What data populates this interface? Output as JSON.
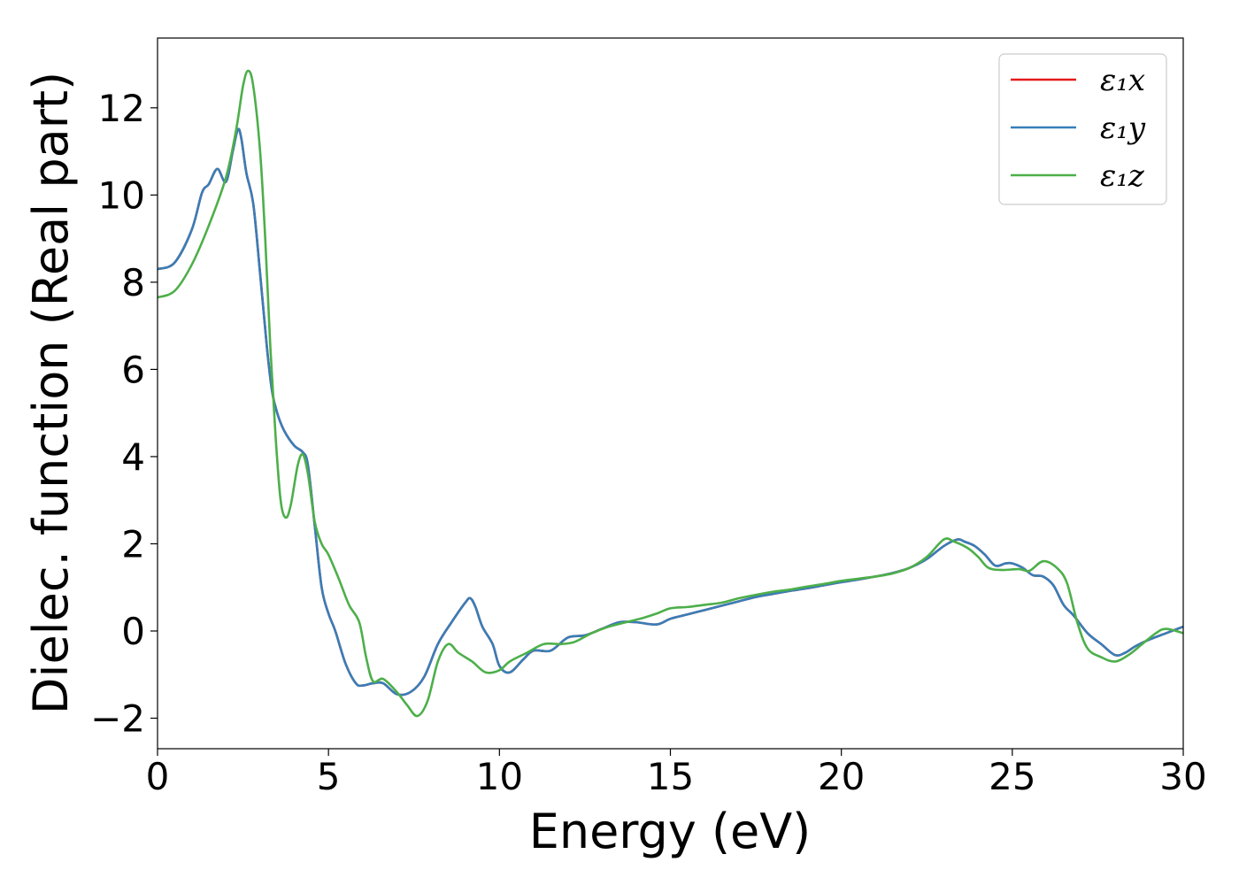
{
  "chart_data": {
    "type": "line",
    "title": "",
    "xlabel": "Energy (eV)",
    "ylabel": "Dielec. function (Real part)",
    "xlim": [
      0,
      30
    ],
    "ylim": [
      -2.7,
      13.6
    ],
    "xticks": [
      0,
      5,
      10,
      15,
      20,
      25,
      30
    ],
    "yticks": [
      -2,
      0,
      2,
      4,
      6,
      8,
      10,
      12
    ],
    "xtick_labels": [
      "0",
      "5",
      "10",
      "15",
      "20",
      "25",
      "30"
    ],
    "ytick_labels": [
      "−2",
      "0",
      "2",
      "4",
      "6",
      "8",
      "10",
      "12"
    ],
    "grid": false,
    "legend_position": "top-right",
    "series": [
      {
        "name": "ε₁x",
        "color": "#e41a1c",
        "points": [
          [
            0,
            8.3
          ],
          [
            0.5,
            8.45
          ],
          [
            1.0,
            9.2
          ],
          [
            1.3,
            10.05
          ],
          [
            1.5,
            10.25
          ],
          [
            1.75,
            10.6
          ],
          [
            2.0,
            10.3
          ],
          [
            2.2,
            11.0
          ],
          [
            2.35,
            11.5
          ],
          [
            2.45,
            11.3
          ],
          [
            2.6,
            10.5
          ],
          [
            2.8,
            9.8
          ],
          [
            3.0,
            8.2
          ],
          [
            3.2,
            6.5
          ],
          [
            3.35,
            5.5
          ],
          [
            3.5,
            5.0
          ],
          [
            3.7,
            4.6
          ],
          [
            4.0,
            4.25
          ],
          [
            4.25,
            4.1
          ],
          [
            4.4,
            3.8
          ],
          [
            4.6,
            2.4
          ],
          [
            4.8,
            1.0
          ],
          [
            5.0,
            0.4
          ],
          [
            5.2,
            0.0
          ],
          [
            5.5,
            -0.75
          ],
          [
            5.8,
            -1.2
          ],
          [
            6.0,
            -1.25
          ],
          [
            6.3,
            -1.2
          ],
          [
            6.6,
            -1.2
          ],
          [
            7.0,
            -1.45
          ],
          [
            7.4,
            -1.4
          ],
          [
            7.8,
            -1.05
          ],
          [
            8.2,
            -0.3
          ],
          [
            8.6,
            0.2
          ],
          [
            9.0,
            0.65
          ],
          [
            9.15,
            0.75
          ],
          [
            9.3,
            0.55
          ],
          [
            9.5,
            0.1
          ],
          [
            9.8,
            -0.3
          ],
          [
            10.0,
            -0.8
          ],
          [
            10.3,
            -0.95
          ],
          [
            10.7,
            -0.65
          ],
          [
            11.0,
            -0.45
          ],
          [
            11.5,
            -0.45
          ],
          [
            12.0,
            -0.15
          ],
          [
            12.5,
            -0.1
          ],
          [
            13.0,
            0.05
          ],
          [
            13.5,
            0.2
          ],
          [
            14.0,
            0.2
          ],
          [
            14.6,
            0.15
          ],
          [
            15.0,
            0.28
          ],
          [
            15.5,
            0.38
          ],
          [
            16.0,
            0.48
          ],
          [
            16.5,
            0.58
          ],
          [
            17.0,
            0.68
          ],
          [
            17.5,
            0.78
          ],
          [
            18.0,
            0.85
          ],
          [
            18.5,
            0.92
          ],
          [
            19.0,
            0.98
          ],
          [
            19.5,
            1.05
          ],
          [
            20.0,
            1.12
          ],
          [
            20.5,
            1.18
          ],
          [
            21.0,
            1.25
          ],
          [
            21.5,
            1.33
          ],
          [
            22.0,
            1.45
          ],
          [
            22.5,
            1.65
          ],
          [
            23.0,
            1.95
          ],
          [
            23.4,
            2.1
          ],
          [
            23.6,
            2.05
          ],
          [
            23.9,
            1.95
          ],
          [
            24.2,
            1.75
          ],
          [
            24.5,
            1.5
          ],
          [
            24.8,
            1.55
          ],
          [
            25.0,
            1.55
          ],
          [
            25.3,
            1.45
          ],
          [
            25.6,
            1.28
          ],
          [
            25.9,
            1.25
          ],
          [
            26.2,
            1.05
          ],
          [
            26.5,
            0.6
          ],
          [
            26.8,
            0.35
          ],
          [
            27.2,
            -0.05
          ],
          [
            27.6,
            -0.3
          ],
          [
            28.0,
            -0.55
          ],
          [
            28.3,
            -0.5
          ],
          [
            28.6,
            -0.35
          ],
          [
            29.0,
            -0.2
          ],
          [
            29.5,
            -0.05
          ],
          [
            30.0,
            0.1
          ]
        ]
      },
      {
        "name": "ε₁y",
        "color": "#377eb8",
        "points": [
          [
            0,
            8.3
          ],
          [
            0.5,
            8.45
          ],
          [
            1.0,
            9.2
          ],
          [
            1.3,
            10.05
          ],
          [
            1.5,
            10.25
          ],
          [
            1.75,
            10.6
          ],
          [
            2.0,
            10.3
          ],
          [
            2.2,
            11.0
          ],
          [
            2.35,
            11.5
          ],
          [
            2.45,
            11.3
          ],
          [
            2.6,
            10.5
          ],
          [
            2.8,
            9.8
          ],
          [
            3.0,
            8.2
          ],
          [
            3.2,
            6.5
          ],
          [
            3.35,
            5.5
          ],
          [
            3.5,
            5.0
          ],
          [
            3.7,
            4.6
          ],
          [
            4.0,
            4.25
          ],
          [
            4.25,
            4.1
          ],
          [
            4.4,
            3.8
          ],
          [
            4.6,
            2.4
          ],
          [
            4.8,
            1.0
          ],
          [
            5.0,
            0.4
          ],
          [
            5.2,
            0.0
          ],
          [
            5.5,
            -0.75
          ],
          [
            5.8,
            -1.2
          ],
          [
            6.0,
            -1.25
          ],
          [
            6.3,
            -1.2
          ],
          [
            6.6,
            -1.2
          ],
          [
            7.0,
            -1.45
          ],
          [
            7.4,
            -1.4
          ],
          [
            7.8,
            -1.05
          ],
          [
            8.2,
            -0.3
          ],
          [
            8.6,
            0.2
          ],
          [
            9.0,
            0.65
          ],
          [
            9.15,
            0.75
          ],
          [
            9.3,
            0.55
          ],
          [
            9.5,
            0.1
          ],
          [
            9.8,
            -0.3
          ],
          [
            10.0,
            -0.8
          ],
          [
            10.3,
            -0.95
          ],
          [
            10.7,
            -0.65
          ],
          [
            11.0,
            -0.45
          ],
          [
            11.5,
            -0.45
          ],
          [
            12.0,
            -0.15
          ],
          [
            12.5,
            -0.1
          ],
          [
            13.0,
            0.05
          ],
          [
            13.5,
            0.2
          ],
          [
            14.0,
            0.2
          ],
          [
            14.6,
            0.15
          ],
          [
            15.0,
            0.28
          ],
          [
            15.5,
            0.38
          ],
          [
            16.0,
            0.48
          ],
          [
            16.5,
            0.58
          ],
          [
            17.0,
            0.68
          ],
          [
            17.5,
            0.78
          ],
          [
            18.0,
            0.85
          ],
          [
            18.5,
            0.92
          ],
          [
            19.0,
            0.98
          ],
          [
            19.5,
            1.05
          ],
          [
            20.0,
            1.12
          ],
          [
            20.5,
            1.18
          ],
          [
            21.0,
            1.25
          ],
          [
            21.5,
            1.33
          ],
          [
            22.0,
            1.45
          ],
          [
            22.5,
            1.65
          ],
          [
            23.0,
            1.95
          ],
          [
            23.4,
            2.1
          ],
          [
            23.6,
            2.05
          ],
          [
            23.9,
            1.95
          ],
          [
            24.2,
            1.75
          ],
          [
            24.5,
            1.5
          ],
          [
            24.8,
            1.55
          ],
          [
            25.0,
            1.55
          ],
          [
            25.3,
            1.45
          ],
          [
            25.6,
            1.28
          ],
          [
            25.9,
            1.25
          ],
          [
            26.2,
            1.05
          ],
          [
            26.5,
            0.6
          ],
          [
            26.8,
            0.35
          ],
          [
            27.2,
            -0.05
          ],
          [
            27.6,
            -0.3
          ],
          [
            28.0,
            -0.55
          ],
          [
            28.3,
            -0.5
          ],
          [
            28.6,
            -0.35
          ],
          [
            29.0,
            -0.2
          ],
          [
            29.5,
            -0.05
          ],
          [
            30.0,
            0.1
          ]
        ]
      },
      {
        "name": "ε₁z",
        "color": "#4daf4a",
        "points": [
          [
            0,
            7.65
          ],
          [
            0.5,
            7.8
          ],
          [
            1.0,
            8.4
          ],
          [
            1.5,
            9.3
          ],
          [
            2.0,
            10.4
          ],
          [
            2.3,
            11.5
          ],
          [
            2.5,
            12.5
          ],
          [
            2.65,
            12.85
          ],
          [
            2.8,
            12.5
          ],
          [
            3.0,
            11.0
          ],
          [
            3.15,
            9.0
          ],
          [
            3.3,
            6.5
          ],
          [
            3.45,
            4.5
          ],
          [
            3.6,
            3.0
          ],
          [
            3.75,
            2.6
          ],
          [
            3.9,
            2.9
          ],
          [
            4.1,
            3.8
          ],
          [
            4.25,
            4.05
          ],
          [
            4.4,
            3.6
          ],
          [
            4.6,
            2.5
          ],
          [
            4.8,
            2.0
          ],
          [
            5.0,
            1.75
          ],
          [
            5.3,
            1.2
          ],
          [
            5.6,
            0.6
          ],
          [
            5.9,
            0.2
          ],
          [
            6.1,
            -0.6
          ],
          [
            6.3,
            -1.15
          ],
          [
            6.6,
            -1.1
          ],
          [
            7.0,
            -1.4
          ],
          [
            7.3,
            -1.7
          ],
          [
            7.6,
            -1.95
          ],
          [
            7.9,
            -1.6
          ],
          [
            8.2,
            -0.7
          ],
          [
            8.5,
            -0.3
          ],
          [
            8.8,
            -0.5
          ],
          [
            9.2,
            -0.7
          ],
          [
            9.6,
            -0.95
          ],
          [
            10.0,
            -0.9
          ],
          [
            10.3,
            -0.7
          ],
          [
            10.8,
            -0.5
          ],
          [
            11.3,
            -0.3
          ],
          [
            11.8,
            -0.3
          ],
          [
            12.2,
            -0.25
          ],
          [
            12.7,
            -0.05
          ],
          [
            13.2,
            0.1
          ],
          [
            13.7,
            0.2
          ],
          [
            14.2,
            0.3
          ],
          [
            14.6,
            0.4
          ],
          [
            15.0,
            0.52
          ],
          [
            15.5,
            0.55
          ],
          [
            16.0,
            0.6
          ],
          [
            16.5,
            0.65
          ],
          [
            17.0,
            0.75
          ],
          [
            17.5,
            0.83
          ],
          [
            18.0,
            0.9
          ],
          [
            18.5,
            0.95
          ],
          [
            19.0,
            1.02
          ],
          [
            19.5,
            1.08
          ],
          [
            20.0,
            1.15
          ],
          [
            20.5,
            1.2
          ],
          [
            21.0,
            1.25
          ],
          [
            21.5,
            1.32
          ],
          [
            22.0,
            1.45
          ],
          [
            22.5,
            1.7
          ],
          [
            23.0,
            2.1
          ],
          [
            23.3,
            2.05
          ],
          [
            23.7,
            1.9
          ],
          [
            24.0,
            1.7
          ],
          [
            24.3,
            1.45
          ],
          [
            24.7,
            1.4
          ],
          [
            25.2,
            1.42
          ],
          [
            25.5,
            1.38
          ],
          [
            25.9,
            1.6
          ],
          [
            26.3,
            1.45
          ],
          [
            26.6,
            1.1
          ],
          [
            26.9,
            0.2
          ],
          [
            27.2,
            -0.4
          ],
          [
            27.6,
            -0.6
          ],
          [
            28.0,
            -0.7
          ],
          [
            28.4,
            -0.55
          ],
          [
            28.8,
            -0.3
          ],
          [
            29.2,
            -0.05
          ],
          [
            29.5,
            0.05
          ],
          [
            30.0,
            -0.05
          ]
        ]
      }
    ]
  }
}
